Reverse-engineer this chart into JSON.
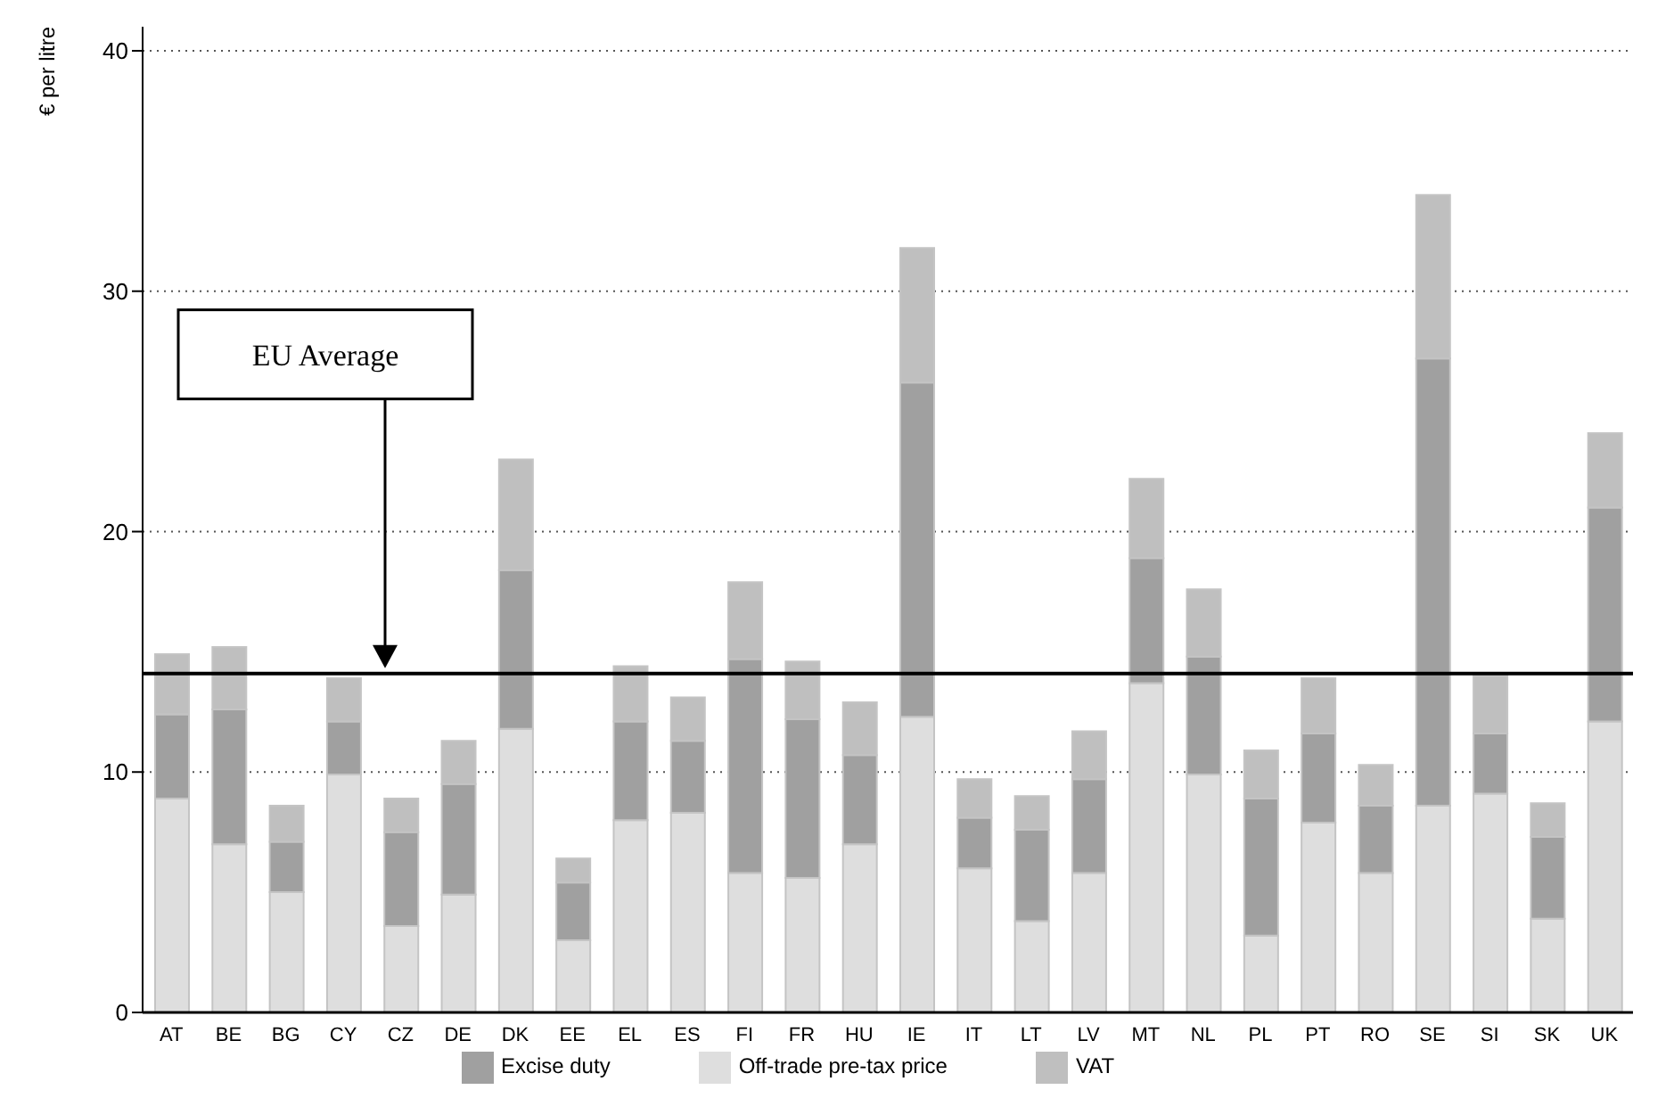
{
  "chart_data": {
    "type": "bar",
    "stacked": true,
    "ylabel": "€ per litre",
    "categories": [
      "AT",
      "BE",
      "BG",
      "CY",
      "CZ",
      "DE",
      "DK",
      "EE",
      "EL",
      "ES",
      "FI",
      "FR",
      "HU",
      "IE",
      "IT",
      "LT",
      "LV",
      "MT",
      "NL",
      "PL",
      "PT",
      "RO",
      "SE",
      "SI",
      "SK",
      "UK"
    ],
    "series": [
      {
        "name": "Off-trade pre-tax price",
        "color": "#dedede",
        "values": [
          8.9,
          7.0,
          5.0,
          9.9,
          3.6,
          4.9,
          11.8,
          3.0,
          8.0,
          8.3,
          5.8,
          5.6,
          7.0,
          12.3,
          6.0,
          3.8,
          5.8,
          13.7,
          9.9,
          3.2,
          7.9,
          5.8,
          8.6,
          9.1,
          3.9,
          12.1
        ]
      },
      {
        "name": "Excise duty",
        "color": "#a0a0a0",
        "values": [
          3.5,
          5.6,
          2.1,
          2.2,
          3.9,
          4.6,
          6.6,
          2.4,
          4.1,
          3.0,
          8.9,
          6.6,
          3.7,
          13.9,
          2.1,
          3.8,
          3.9,
          5.2,
          4.9,
          5.7,
          3.7,
          2.8,
          18.6,
          2.5,
          3.4,
          8.9
        ]
      },
      {
        "name": "VAT",
        "color": "#bfbfbf",
        "values": [
          2.5,
          2.6,
          1.5,
          1.8,
          1.4,
          1.8,
          4.6,
          1.0,
          2.3,
          1.8,
          3.2,
          2.4,
          2.2,
          5.6,
          1.6,
          1.4,
          2.0,
          3.3,
          2.8,
          2.0,
          2.3,
          1.7,
          6.8,
          2.4,
          1.4,
          3.1
        ]
      }
    ],
    "ylim": [
      0,
      41
    ],
    "yticks": [
      0,
      10,
      20,
      30,
      40
    ],
    "grid": "y",
    "legend": "bottom",
    "ref_lines": [
      {
        "axis": "y",
        "value": 14.1,
        "color": "#000000"
      }
    ],
    "annotations": [
      "EU Average"
    ]
  }
}
